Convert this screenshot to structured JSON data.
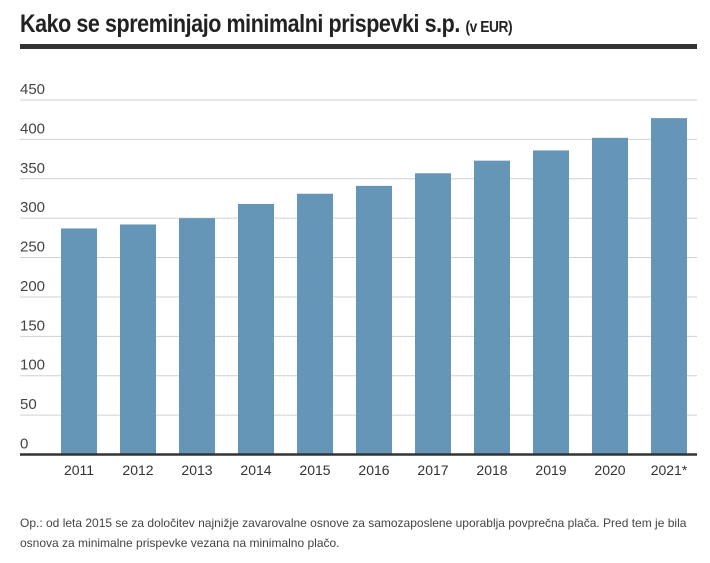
{
  "chart_data": {
    "type": "bar",
    "title": "Kako se spreminjajo minimalni prispevki s.p.",
    "subtitle": "(v EUR)",
    "xlabel": "",
    "ylabel": "",
    "categories": [
      "2011",
      "2012",
      "2013",
      "2014",
      "2015",
      "2016",
      "2017",
      "2018",
      "2019",
      "2020",
      "2021*"
    ],
    "values": [
      287,
      292,
      300,
      318,
      331,
      341,
      357,
      373,
      386,
      402,
      427
    ],
    "ylim": [
      0,
      450
    ],
    "yticks": [
      0,
      50,
      100,
      150,
      200,
      250,
      300,
      350,
      400,
      450
    ],
    "grid": true,
    "bar_color": "#6596b8",
    "note": "Op.: od leta 2015 se za določitev najnižje zavarovalne osnove za samozaposlene uporablja povprečna plača. Pred tem je bila osnova za minimalne prispevke vezana na minimalno plačo."
  }
}
